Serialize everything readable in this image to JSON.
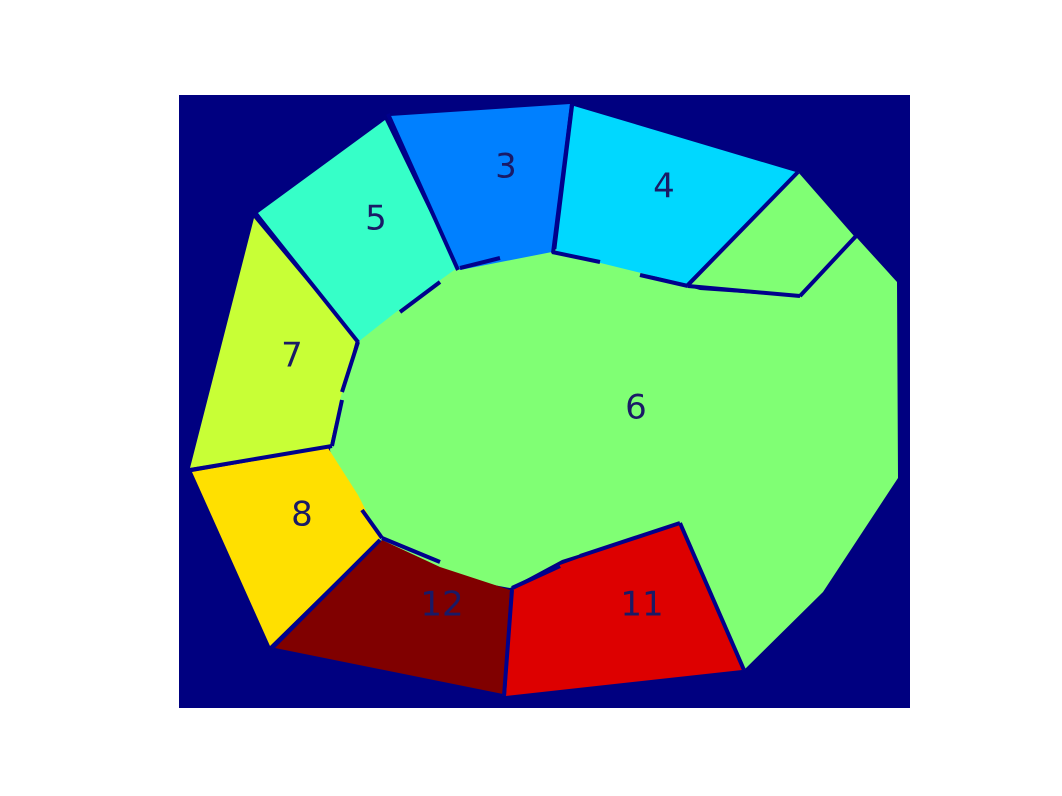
{
  "colors": {
    "background": "#000080",
    "boundary": "#00008c"
  },
  "regions": [
    {
      "label": "3",
      "color": "#0080ff"
    },
    {
      "label": "4",
      "color": "#00d8ff"
    },
    {
      "label": "5",
      "color": "#36ffc8"
    },
    {
      "label": "6",
      "color": "#80ff74"
    },
    {
      "label": "7",
      "color": "#c8ff36"
    },
    {
      "label": "8",
      "color": "#ffe000"
    },
    {
      "label": "11",
      "color": "#dd0000"
    },
    {
      "label": "12",
      "color": "#800000"
    }
  ]
}
